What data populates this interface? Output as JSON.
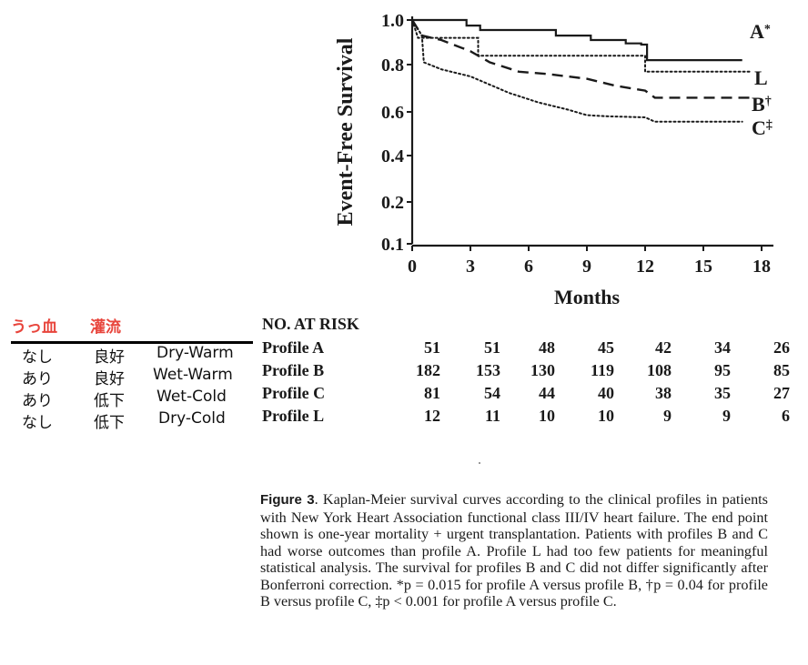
{
  "chart_data": {
    "type": "line",
    "subtype": "kaplan-meier step",
    "title": "",
    "xlabel": "Months",
    "ylabel": "Event-Free Survival",
    "xlim": [
      0,
      18
    ],
    "ylim": [
      0.1,
      1.0
    ],
    "x_ticks": [
      0,
      3,
      6,
      9,
      12,
      15,
      18
    ],
    "x_tick_labels": [
      "0",
      "3",
      "6",
      "9",
      "12",
      "15",
      "18"
    ],
    "y_ticks": [
      1.0,
      0.8,
      0.6,
      0.4,
      0.2,
      0.1
    ],
    "y_tick_labels": [
      "1.0",
      "0.8",
      "0.6",
      "0.4",
      "0.2",
      "0.1"
    ],
    "grid": false,
    "legend": "inline labels at right end of curves",
    "series": [
      {
        "name": "A",
        "label": "A",
        "marker": "*",
        "style": "solid",
        "points": [
          [
            0,
            1.0
          ],
          [
            2.8,
            1.0
          ],
          [
            2.8,
            0.975
          ],
          [
            3.5,
            0.975
          ],
          [
            3.5,
            0.955
          ],
          [
            7.4,
            0.955
          ],
          [
            7.4,
            0.93
          ],
          [
            9.2,
            0.93
          ],
          [
            9.2,
            0.91
          ],
          [
            11.0,
            0.91
          ],
          [
            11.0,
            0.895
          ],
          [
            11.8,
            0.895
          ],
          [
            11.8,
            0.89
          ],
          [
            12.1,
            0.89
          ],
          [
            12.1,
            0.82
          ],
          [
            17.0,
            0.82
          ]
        ]
      },
      {
        "name": "L",
        "label": "L",
        "marker": "",
        "style": "dotted",
        "points": [
          [
            0,
            1.0
          ],
          [
            0.3,
            0.92
          ],
          [
            3.4,
            0.92
          ],
          [
            3.4,
            0.84
          ],
          [
            12.0,
            0.84
          ],
          [
            12.0,
            0.77
          ],
          [
            17.5,
            0.77
          ]
        ]
      },
      {
        "name": "B",
        "label": "B",
        "marker": "†",
        "style": "dashed",
        "points": [
          [
            0,
            1.0
          ],
          [
            0.5,
            0.93
          ],
          [
            1.5,
            0.91
          ],
          [
            3.0,
            0.86
          ],
          [
            4.0,
            0.81
          ],
          [
            5.5,
            0.77
          ],
          [
            7.0,
            0.76
          ],
          [
            9.0,
            0.74
          ],
          [
            10.5,
            0.71
          ],
          [
            12.0,
            0.69
          ],
          [
            12.5,
            0.66
          ],
          [
            17.5,
            0.66
          ]
        ]
      },
      {
        "name": "C",
        "label": "C",
        "marker": "‡",
        "style": "dotted",
        "points": [
          [
            0,
            1.0
          ],
          [
            0.5,
            0.93
          ],
          [
            0.6,
            0.81
          ],
          [
            1.5,
            0.78
          ],
          [
            3.0,
            0.75
          ],
          [
            5.0,
            0.68
          ],
          [
            6.5,
            0.64
          ],
          [
            8.0,
            0.61
          ],
          [
            9.0,
            0.585
          ],
          [
            10.0,
            0.58
          ],
          [
            12.0,
            0.575
          ],
          [
            12.5,
            0.555
          ],
          [
            17.0,
            0.555
          ]
        ]
      }
    ]
  },
  "profile_legend": {
    "headers": [
      "うっ血",
      "灌流"
    ],
    "header_color": "#e8453c",
    "rows": [
      {
        "congestion": "なし",
        "perfusion": "良好",
        "name": "Dry-Warm"
      },
      {
        "congestion": "あり",
        "perfusion": "良好",
        "name": "Wet-Warm"
      },
      {
        "congestion": "あり",
        "perfusion": "低下",
        "name": "Wet-Cold"
      },
      {
        "congestion": "なし",
        "perfusion": "低下",
        "name": "Dry-Cold"
      }
    ]
  },
  "at_risk": {
    "title": "NO. AT RISK",
    "rows": [
      {
        "label": "Profile A",
        "values": [
          "51",
          "51",
          "48",
          "45",
          "42",
          "34",
          "26"
        ]
      },
      {
        "label": "Profile B",
        "values": [
          "182",
          "153",
          "130",
          "119",
          "108",
          "95",
          "85"
        ]
      },
      {
        "label": "Profile C",
        "values": [
          "81",
          "54",
          "44",
          "40",
          "38",
          "35",
          "27"
        ]
      },
      {
        "label": "Profile L",
        "values": [
          "12",
          "11",
          "10",
          "10",
          "9",
          "9",
          "6"
        ]
      }
    ]
  },
  "caption": {
    "figure_label": "Figure 3",
    "text": ".  Kaplan-Meier survival curves according to the clinical profiles in patients with New York Heart Association functional class III/IV heart failure. The end point shown is one-year mortality + urgent transplantation. Patients with profiles B and C had worse outcomes than profile A. Profile L had too few patients for meaningful statistical analysis. The survival for profiles B and C did not differ significantly after Bonferroni correction. *p = 0.015 for profile A versus profile B, †p = 0.04 for profile B versus profile C, ‡p < 0.001 for profile A versus profile C."
  }
}
